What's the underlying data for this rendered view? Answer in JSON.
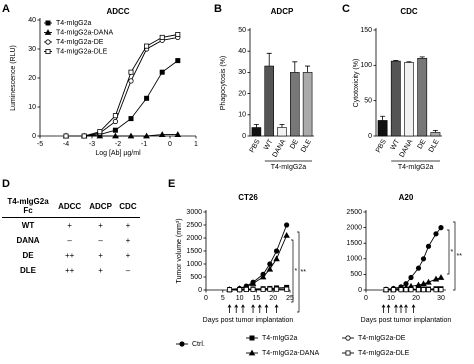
{
  "panel_labels": [
    "A",
    "B",
    "C",
    "D",
    "E"
  ],
  "table": {
    "header": [
      "T4-mIgG2a Fc",
      "ADCC",
      "ADCP",
      "CDC"
    ],
    "rows": [
      [
        "WT",
        "+",
        "+",
        "+"
      ],
      [
        "DANA",
        "–",
        "–",
        "+"
      ],
      [
        "DE",
        "++",
        "+",
        "+"
      ],
      [
        "DLE",
        "++",
        "+",
        "–"
      ]
    ]
  },
  "chart_data": [
    {
      "type": "line",
      "title": "ADCC",
      "x_label": "Log [Ab] µg/ml",
      "y_label": "Luminescence (RLU)",
      "x": [
        -4,
        -3.3,
        -2.7,
        -2.1,
        -1.5,
        -0.9,
        -0.3,
        0.3
      ],
      "xlim": [
        -5,
        1
      ],
      "xticks": [
        -5,
        -4,
        -3,
        -2,
        -1,
        0,
        1
      ],
      "ylim": [
        0,
        40
      ],
      "yticks": [
        0,
        10,
        20,
        30,
        40
      ],
      "legend": "upper left",
      "series": [
        {
          "name": "T4-mIgG2a",
          "color": "#000000",
          "marker": "square",
          "filled": true,
          "values": [
            0,
            0,
            0.5,
            2,
            6,
            13,
            22,
            26
          ]
        },
        {
          "name": "T4-mIgG2a-DANA",
          "color": "#000000",
          "marker": "triangle",
          "filled": true,
          "values": [
            0,
            0,
            0,
            0,
            0,
            0,
            0.5,
            0.5
          ]
        },
        {
          "name": "T4-mIgG2a-DE",
          "color": "#000000",
          "marker": "circle",
          "filled": false,
          "values": [
            0,
            0,
            1,
            5,
            19,
            30,
            33,
            34
          ]
        },
        {
          "name": "T4-mIgG2a-DLE",
          "color": "#000000",
          "marker": "square",
          "filled": false,
          "values": [
            0,
            0,
            1.5,
            7,
            22,
            31,
            34,
            35
          ]
        }
      ]
    },
    {
      "type": "bar",
      "title": "ADCP",
      "y_label": "Phagocytosis (%)",
      "group_label": "T4-mIgG2a",
      "categories": [
        "PBS",
        "WT",
        "DANA",
        "DE",
        "DLE"
      ],
      "values": [
        4,
        33,
        4,
        30,
        30
      ],
      "errors": [
        1.5,
        6,
        1.5,
        5,
        3
      ],
      "colors": [
        "#111111",
        "#555555",
        "#f2f2f2",
        "#777777",
        "#aaaaaa"
      ],
      "ylim": [
        0,
        50
      ],
      "yticks": [
        0,
        10,
        20,
        30,
        40,
        50
      ]
    },
    {
      "type": "bar",
      "title": "CDC",
      "y_label": "Cytotoxicity (%)",
      "group_label": "T4-mIgG2a",
      "categories": [
        "PBS",
        "WT",
        "DANA",
        "DE",
        "DLE"
      ],
      "values": [
        22,
        106,
        104,
        110,
        5
      ],
      "errors": [
        6,
        1,
        1,
        2,
        3
      ],
      "colors": [
        "#111111",
        "#555555",
        "#f2f2f2",
        "#777777",
        "#aaaaaa"
      ],
      "ylim": [
        0,
        150
      ],
      "yticks": [
        0,
        50,
        100,
        150
      ]
    },
    {
      "type": "line",
      "title": "CT26",
      "x_label": "Days post tumor implantation",
      "y_label": "Tumor volume (mm³)",
      "x": [
        7,
        10,
        12,
        14,
        17,
        19,
        21,
        24
      ],
      "dosing_days": [
        7,
        9,
        11,
        14,
        16,
        18,
        21
      ],
      "xlim": [
        0,
        25
      ],
      "xticks": [
        0,
        5,
        10,
        15,
        20,
        25
      ],
      "ylim": [
        0,
        3000
      ],
      "yticks": [
        0,
        500,
        1000,
        1500,
        2000,
        2500,
        3000
      ],
      "annotations": [
        "*",
        "**"
      ],
      "legend": "bottom",
      "series": [
        {
          "name": "Ctrl.",
          "color": "#000000",
          "marker": "circle",
          "filled": true,
          "values": [
            20,
            60,
            150,
            300,
            600,
            1000,
            1500,
            2500
          ]
        },
        {
          "name": "T4-mIgG2a",
          "color": "#000000",
          "marker": "square",
          "filled": true,
          "values": [
            10,
            20,
            30,
            40,
            50,
            60,
            80,
            100
          ]
        },
        {
          "name": "T4-mIgG2a-DANA",
          "color": "#000000",
          "marker": "triangle",
          "filled": true,
          "values": [
            20,
            50,
            120,
            250,
            500,
            800,
            1200,
            2100
          ]
        },
        {
          "name": "T4-mIgG2a-DE",
          "color": "#000000",
          "marker": "circle",
          "filled": false,
          "values": [
            10,
            10,
            20,
            20,
            30,
            30,
            40,
            40
          ]
        },
        {
          "name": "T4-mIgG2a-DLE",
          "color": "#000000",
          "marker": "square",
          "filled": false,
          "values": [
            10,
            10,
            20,
            20,
            20,
            30,
            30,
            30
          ]
        }
      ]
    },
    {
      "type": "line",
      "title": "A20",
      "x_label": "Days post tumor implantation",
      "x": [
        8,
        11,
        14,
        16,
        18,
        21,
        23,
        25,
        28,
        30
      ],
      "dosing_days": [
        7,
        9,
        12,
        14,
        16,
        19
      ],
      "xlim": [
        0,
        32
      ],
      "xticks": [
        0,
        10,
        20,
        30
      ],
      "ylim": [
        0,
        2500
      ],
      "yticks": [
        0,
        500,
        1000,
        1500,
        2000,
        2500
      ],
      "annotations": [
        "*",
        "**"
      ],
      "series": [
        {
          "name": "Ctrl.",
          "color": "#000000",
          "marker": "circle",
          "filled": true,
          "values": [
            20,
            50,
            100,
            200,
            400,
            700,
            1000,
            1400,
            1800,
            2000
          ]
        },
        {
          "name": "T4-mIgG2a",
          "color": "#000000",
          "marker": "square",
          "filled": true,
          "values": [
            10,
            10,
            20,
            20,
            20,
            30,
            30,
            30,
            40,
            40
          ]
        },
        {
          "name": "T4-mIgG2a-DANA",
          "color": "#000000",
          "marker": "triangle",
          "filled": true,
          "values": [
            10,
            30,
            50,
            80,
            120,
            160,
            200,
            250,
            350,
            400
          ]
        },
        {
          "name": "T4-mIgG2a-DE",
          "color": "#000000",
          "marker": "circle",
          "filled": false,
          "values": [
            10,
            10,
            10,
            10,
            10,
            10,
            10,
            10,
            10,
            10
          ]
        },
        {
          "name": "T4-mIgG2a-DLE",
          "color": "#000000",
          "marker": "square",
          "filled": false,
          "values": [
            10,
            10,
            10,
            10,
            10,
            10,
            10,
            10,
            10,
            10
          ]
        }
      ]
    }
  ]
}
